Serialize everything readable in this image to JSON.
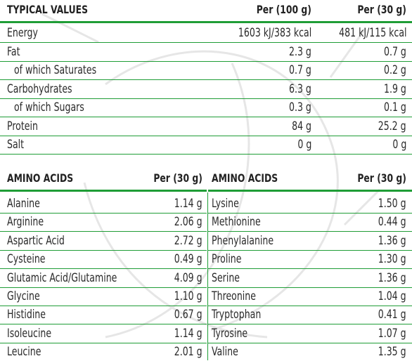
{
  "typical_values": {
    "heading": "TYPICAL VALUES",
    "col_100g": "Per (100 g)",
    "col_30g": "Per (30 g)",
    "rows": [
      {
        "label": "Energy",
        "per100": "1603 kJ/383 kcal",
        "per30": "481 kJ/115 kcal",
        "sub": false
      },
      {
        "label": "Fat",
        "per100": "2.3 g",
        "per30": "0.7 g",
        "sub": false
      },
      {
        "label": "of which Saturates",
        "per100": "0.7 g",
        "per30": "0.2 g",
        "sub": true
      },
      {
        "label": "Carbohydrates",
        "per100": "6.3 g",
        "per30": "1.9 g",
        "sub": false
      },
      {
        "label": "of which Sugars",
        "per100": "0.3 g",
        "per30": "0.1 g",
        "sub": true
      },
      {
        "label": "Protein",
        "per100": "84 g",
        "per30": "25.2 g",
        "sub": false
      },
      {
        "label": "Salt",
        "per100": "0 g",
        "per30": "0 g",
        "sub": false
      }
    ]
  },
  "amino_left": {
    "heading": "AMINO ACIDS",
    "col": "Per (30 g)",
    "rows": [
      {
        "name": "Alanine",
        "value": "1.14 g"
      },
      {
        "name": "Arginine",
        "value": "2.06 g"
      },
      {
        "name": "Aspartic Acid",
        "value": "2.72 g"
      },
      {
        "name": "Cysteine",
        "value": "0.49 g"
      },
      {
        "name": "Glutamic Acid/Glutamine",
        "value": "4.09 g"
      },
      {
        "name": "Glycine",
        "value": "1.10 g"
      },
      {
        "name": "Histidine",
        "value": "0.67 g"
      },
      {
        "name": "Isoleucine",
        "value": "1.14 g"
      },
      {
        "name": "Leucine",
        "value": "2.01 g"
      }
    ]
  },
  "amino_right": {
    "heading": "AMINO ACIDS",
    "col": "Per (30 g)",
    "rows": [
      {
        "name": "Lysine",
        "value": "1.50 g"
      },
      {
        "name": "Methionine",
        "value": "0.44 g"
      },
      {
        "name": "Phenylalanine",
        "value": "1.36 g"
      },
      {
        "name": "Proline",
        "value": "1.30 g"
      },
      {
        "name": "Serine",
        "value": "1.36 g"
      },
      {
        "name": "Threonine",
        "value": "1.04 g"
      },
      {
        "name": "Tryptophan",
        "value": "0.41 g"
      },
      {
        "name": "Tyrosine",
        "value": "1.07 g"
      },
      {
        "name": "Valine",
        "value": "1.35 g"
      }
    ]
  },
  "colors": {
    "rule_green": "#1f9d36",
    "text": "#2a2a2a"
  }
}
